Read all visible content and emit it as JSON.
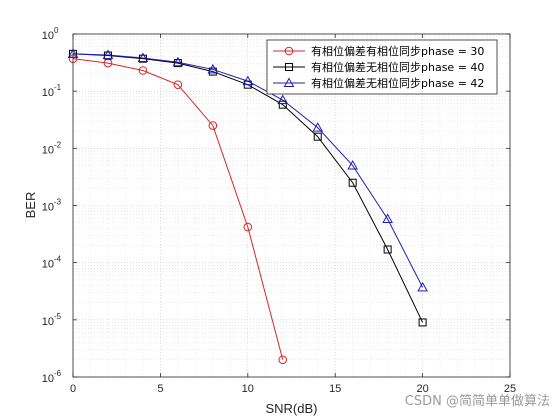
{
  "chart_data": {
    "type": "line",
    "xlabel": "SNR(dB)",
    "ylabel": "BER",
    "xlim": [
      0,
      25
    ],
    "ylim": [
      1e-06,
      1
    ],
    "yscale": "log",
    "grid": "on (major and minor)",
    "legend_position": "top-right",
    "x_ticks": [
      "0",
      "5",
      "10",
      "15",
      "20",
      "25"
    ],
    "y_ticks": [
      {
        "base": "10",
        "exp": "0",
        "value": 1
      },
      {
        "base": "10",
        "exp": "-1",
        "value": 0.1
      },
      {
        "base": "10",
        "exp": "-2",
        "value": 0.01
      },
      {
        "base": "10",
        "exp": "-3",
        "value": 0.001
      },
      {
        "base": "10",
        "exp": "-4",
        "value": 0.0001
      },
      {
        "base": "10",
        "exp": "-5",
        "value": 1e-05
      },
      {
        "base": "10",
        "exp": "-6",
        "value": 1e-06
      }
    ],
    "series": [
      {
        "name": "有相位偏差有相位同步phase = 30",
        "color": "#d62728",
        "marker": "circle",
        "x": [
          0,
          2,
          4,
          6,
          8,
          10,
          12
        ],
        "y": [
          0.37,
          0.31,
          0.23,
          0.13,
          0.025,
          0.00042,
          2e-06
        ]
      },
      {
        "name": "有相位偏差无相位同步phase = 40",
        "color": "#000000",
        "marker": "square",
        "x": [
          0,
          2,
          4,
          6,
          8,
          10,
          12,
          14,
          16,
          18,
          20
        ],
        "y": [
          0.45,
          0.42,
          0.37,
          0.31,
          0.22,
          0.13,
          0.058,
          0.016,
          0.0025,
          0.00017,
          9e-06
        ]
      },
      {
        "name": "有相位偏差无相位同步phase = 42",
        "color": "#1f1fb4",
        "marker": "triangle",
        "x": [
          0,
          2,
          4,
          6,
          8,
          10,
          12,
          14,
          16,
          18,
          20
        ],
        "y": [
          0.45,
          0.43,
          0.38,
          0.32,
          0.24,
          0.15,
          0.07,
          0.023,
          0.005,
          0.00058,
          3.7e-05
        ]
      }
    ]
  },
  "watermark": "CSDN @简简单单做算法"
}
